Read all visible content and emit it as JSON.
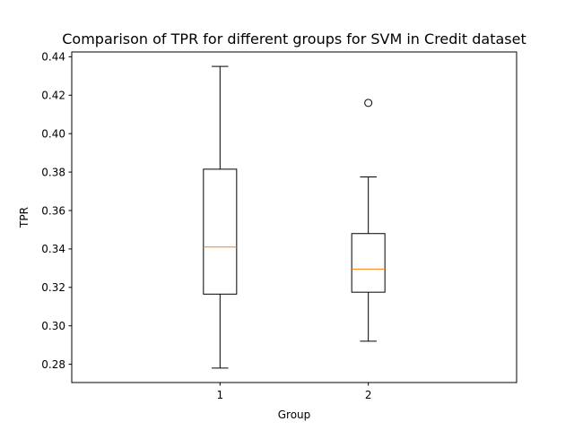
{
  "chart_data": {
    "type": "boxplot",
    "title": "Comparison of TPR for different groups for SVM in Credit dataset",
    "xlabel": "Group",
    "ylabel": "TPR",
    "ylim": [
      0.2705,
      0.4425
    ],
    "yticks": [
      0.28,
      0.3,
      0.32,
      0.34,
      0.36,
      0.38,
      0.4,
      0.42,
      0.44
    ],
    "ytick_labels": [
      "0.28",
      "0.30",
      "0.32",
      "0.34",
      "0.36",
      "0.38",
      "0.40",
      "0.42",
      "0.44"
    ],
    "categories": [
      "1",
      "2"
    ],
    "boxes": [
      {
        "label": "1",
        "whisker_low": 0.278,
        "q1": 0.3165,
        "median": 0.341,
        "q3": 0.3815,
        "whisker_high": 0.435,
        "outliers": []
      },
      {
        "label": "2",
        "whisker_low": 0.292,
        "q1": 0.3175,
        "median": 0.3295,
        "q3": 0.348,
        "whisker_high": 0.3775,
        "outliers": [
          0.416
        ]
      }
    ],
    "colors": {
      "box": "#000000",
      "median": "#ff7f0e",
      "background": "#ffffff"
    },
    "grid": false,
    "legend": "none"
  }
}
